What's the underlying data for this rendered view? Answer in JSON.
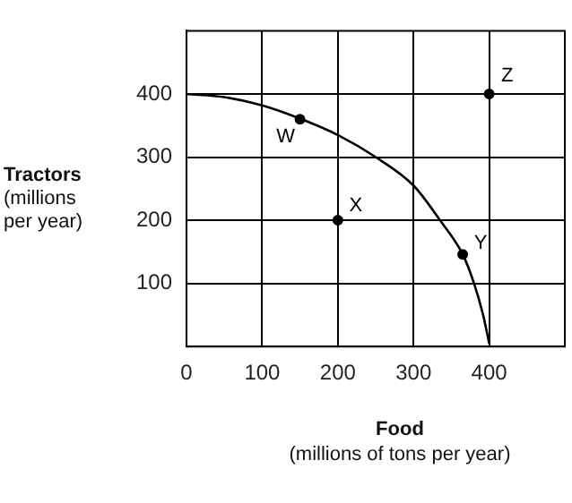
{
  "chart_data": {
    "type": "line",
    "xlabel": "Food\n(millions of tons per year)",
    "ylabel": "Tractors\n(millions\nper year)",
    "xlim": [
      0,
      500
    ],
    "ylim": [
      0,
      500
    ],
    "xticks": [
      0,
      100,
      200,
      300,
      400
    ],
    "yticks": [
      100,
      200,
      300,
      400
    ],
    "grid": true,
    "legend": false,
    "series": [
      {
        "color": "#000000",
        "marker": "none",
        "x": [
          0,
          50,
          100,
          150,
          200,
          250,
          300,
          335,
          365,
          380,
          392,
          400
        ],
        "values": [
          400,
          395,
          382,
          361,
          335,
          300,
          255,
          200,
          146,
          100,
          50,
          5
        ]
      },
      {
        "type": "scatter",
        "color": "#000000",
        "marker": "circle",
        "x": [
          150,
          200,
          365,
          400
        ],
        "values": [
          360,
          200,
          146,
          400
        ]
      }
    ],
    "annotations": [
      {
        "text": "W",
        "x": 150,
        "y": 360
      },
      {
        "text": "X",
        "x": 200,
        "y": 200
      },
      {
        "text": "Y",
        "x": 365,
        "y": 146
      },
      {
        "text": "Z",
        "x": 400,
        "y": 400
      }
    ]
  }
}
